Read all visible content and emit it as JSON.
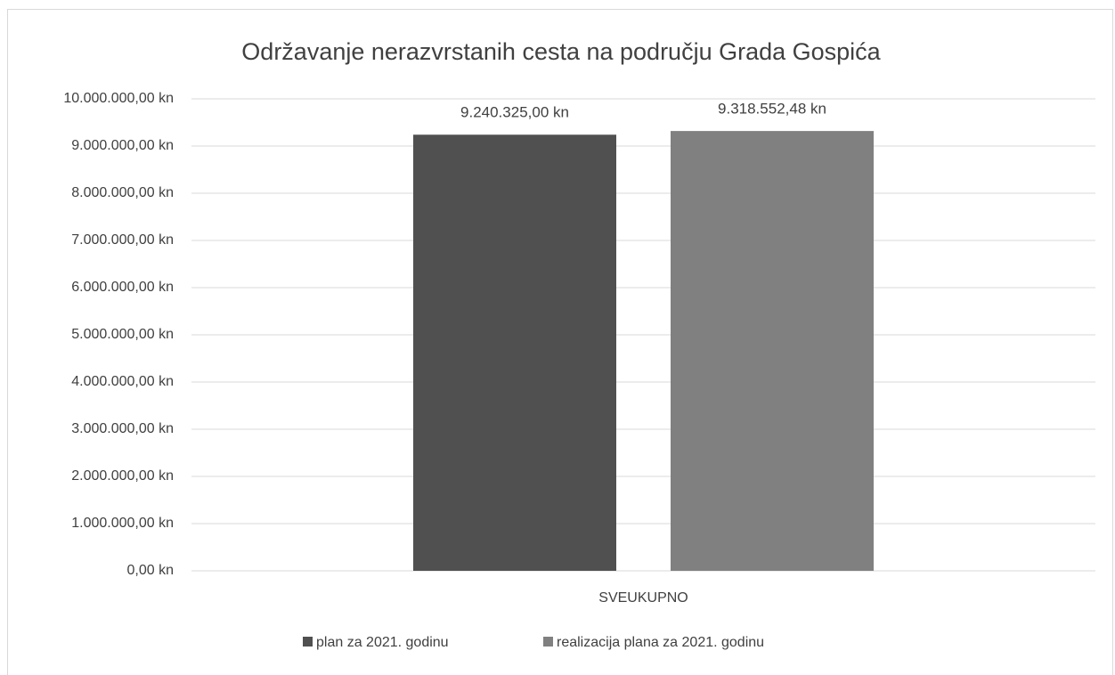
{
  "chart_data": {
    "type": "bar",
    "title": "Održavanje nerazvrstanih cesta na području Grada Gospića",
    "categories": [
      "SVEUKUPNO"
    ],
    "series": [
      {
        "name": "plan za 2021. godinu",
        "color": "#505050",
        "values": [
          9240325
        ],
        "value_labels": [
          "9.240.325,00 kn"
        ]
      },
      {
        "name": "realizacija plana za 2021. godinu",
        "color": "#808080",
        "values": [
          9318552.48
        ],
        "value_labels": [
          "9.318.552,48 kn"
        ]
      }
    ],
    "ylim": [
      0,
      10000000
    ],
    "yticks": [
      {
        "value": 0,
        "label": "0,00 kn"
      },
      {
        "value": 1000000,
        "label": "1.000.000,00 kn"
      },
      {
        "value": 2000000,
        "label": "2.000.000,00 kn"
      },
      {
        "value": 3000000,
        "label": "3.000.000,00 kn"
      },
      {
        "value": 4000000,
        "label": "4.000.000,00 kn"
      },
      {
        "value": 5000000,
        "label": "5.000.000,00 kn"
      },
      {
        "value": 6000000,
        "label": "6.000.000,00 kn"
      },
      {
        "value": 7000000,
        "label": "7.000.000,00 kn"
      },
      {
        "value": 8000000,
        "label": "8.000.000,00 kn"
      },
      {
        "value": 9000000,
        "label": "9.000.000,00 kn"
      },
      {
        "value": 10000000,
        "label": "10.000.000,00 kn"
      }
    ],
    "grid": true,
    "legend": "bottom"
  }
}
